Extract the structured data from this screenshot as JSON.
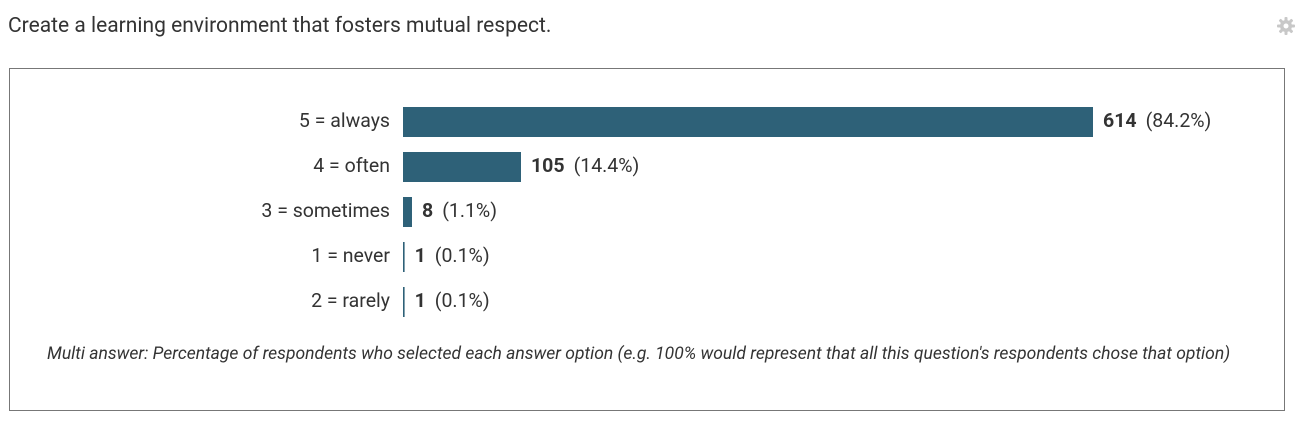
{
  "chart_data": {
    "type": "hbar",
    "title": "Create a learning environment that fosters mutual respect.",
    "categories": [
      "5 = always",
      "4 = often",
      "3 = sometimes",
      "1 = never",
      "2 = rarely"
    ],
    "values": [
      614,
      105,
      8,
      1,
      1
    ],
    "percent_labels": [
      "(84.2%)",
      "(14.4%)",
      "(1.1%)",
      "(0.1%)",
      "(0.1%)"
    ],
    "color": "#2e6178",
    "note": "Multi answer: Percentage of respondents who selected each answer option (e.g. 100% would represent that all this question's respondents chose that option)"
  }
}
